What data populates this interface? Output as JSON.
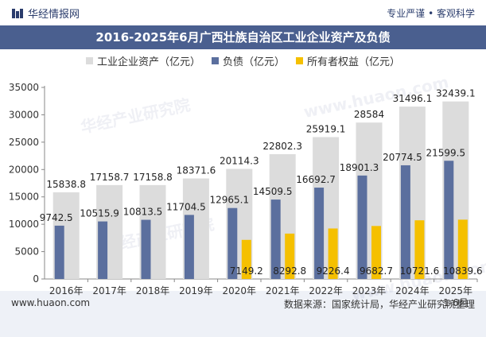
{
  "header": {
    "brand": "华经情报网",
    "tagline": "专业严谨 • 客观科学"
  },
  "chart_data": {
    "type": "bar",
    "title": "2016-2025年6月广西壮族自治区工业企业资产及负债",
    "categories": [
      "2016年",
      "2017年",
      "2018年",
      "2019年",
      "2020年",
      "2021年",
      "2022年",
      "2023年",
      "2024年",
      "2025年\n1-6月"
    ],
    "category_lines": [
      [
        "2016年"
      ],
      [
        "2017年"
      ],
      [
        "2018年"
      ],
      [
        "2019年"
      ],
      [
        "2020年"
      ],
      [
        "2021年"
      ],
      [
        "2022年"
      ],
      [
        "2023年"
      ],
      [
        "2024年"
      ],
      [
        "2025年",
        "1-6月"
      ]
    ],
    "series": [
      {
        "name": "工业企业资产（亿元）",
        "color": "#dcdcdc",
        "values": [
          15838.8,
          17158.7,
          17158.8,
          18371.6,
          20114.3,
          22802.3,
          25919.1,
          28584,
          31496.1,
          32439.1
        ],
        "labels": [
          "15838.8",
          "17158.7",
          "17158.8",
          "18371.6",
          "20114.3",
          "22802.3",
          "25919.1",
          "28584",
          "31496.1",
          "32439.1"
        ]
      },
      {
        "name": "负债（亿元）",
        "color": "#5b6f9e",
        "values": [
          9742.5,
          10515.9,
          10813.5,
          11704.5,
          12965.1,
          14509.5,
          16692.7,
          18901.3,
          20774.5,
          21599.5
        ],
        "labels": [
          "9742.5",
          "10515.9",
          "10813.5",
          "11704.5",
          "12965.1",
          "14509.5",
          "16692.7",
          "18901.3",
          "20774.5",
          "21599.5"
        ]
      },
      {
        "name": "所有者权益（亿元）",
        "color": "#f5c000",
        "values": [
          null,
          null,
          null,
          null,
          7149.2,
          8292.8,
          9226.4,
          9682.7,
          10721.6,
          10839.6
        ],
        "labels": [
          "",
          "",
          "",
          "",
          "7149.2",
          "8292.8",
          "9226.4",
          "9682.7",
          "10721.6",
          "10839.6"
        ]
      }
    ],
    "ylim": [
      0,
      35000
    ],
    "yticks": [
      0,
      5000,
      10000,
      15000,
      20000,
      25000,
      30000,
      35000
    ],
    "ytick_labels": [
      "0",
      "5000",
      "10000",
      "15000",
      "20000",
      "25000",
      "30000",
      "35000"
    ],
    "legend_position": "top-center",
    "grid": false
  },
  "footer": {
    "website": "www.huaon.com",
    "source": "数据来源：国家统计局，华经产业研究院整理"
  },
  "watermarks": [
    "华经产业研究院",
    "www.huaon.com"
  ]
}
